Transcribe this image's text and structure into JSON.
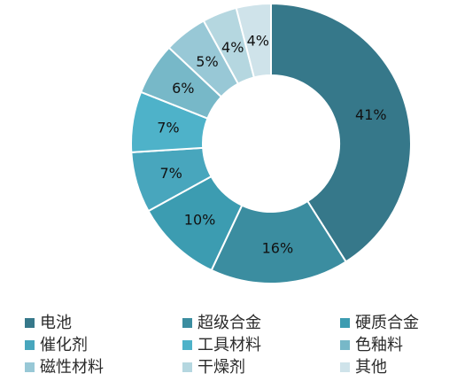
{
  "chart_data": {
    "type": "pie",
    "donut": true,
    "title": "",
    "legend_position": "bottom",
    "categories": [
      "电池",
      "超级合金",
      "硬质合金",
      "催化剂",
      "工具材料",
      "色釉料",
      "磁性材料",
      "干燥剂",
      "其他"
    ],
    "values": [
      41,
      16,
      10,
      7,
      7,
      6,
      5,
      4,
      4
    ],
    "labels": [
      "41%",
      "16%",
      "10%",
      "7%",
      "7%",
      "6%",
      "5%",
      "4%",
      "4%"
    ],
    "colors": [
      "#36788A",
      "#3B8DA0",
      "#3C9CB1",
      "#48A6BD",
      "#4EB2C9",
      "#77B8C8",
      "#98C8D6",
      "#B5D7E0",
      "#CFE3EA"
    ]
  }
}
